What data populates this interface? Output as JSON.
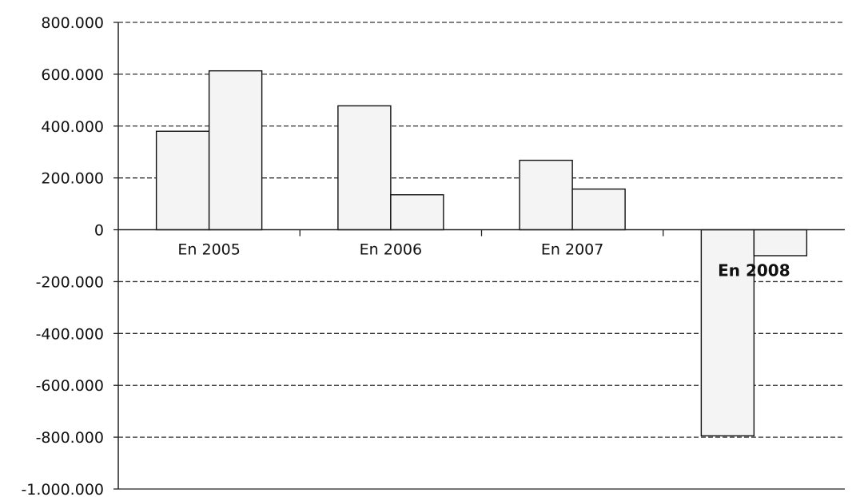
{
  "chart_data": {
    "type": "bar",
    "title": "",
    "xlabel": "",
    "ylabel": "",
    "categories": [
      "En 2005",
      "En 2006",
      "En 2007",
      "En 2008"
    ],
    "series": [
      {
        "values": [
          380000,
          478000,
          268000,
          -795000
        ]
      },
      {
        "values": [
          613000,
          135000,
          157000,
          -100000
        ]
      }
    ],
    "ylim": [
      -1000000,
      800000
    ],
    "yticks": [
      800000,
      600000,
      400000,
      200000,
      0,
      -200000,
      -400000,
      -600000,
      -800000,
      -1000000
    ],
    "ytick_labels": [
      "800.000",
      "600.000",
      "400.000",
      "200.000",
      "0",
      "-200.000",
      "-400.000",
      "-600.000",
      "-800.000",
      "-1.000.000"
    ],
    "grid": true,
    "legend": "none",
    "colors": {
      "bar_fill": "#f4f4f4",
      "bar_stroke": "#111111",
      "grid": "#333333",
      "axis": "#222222"
    }
  }
}
